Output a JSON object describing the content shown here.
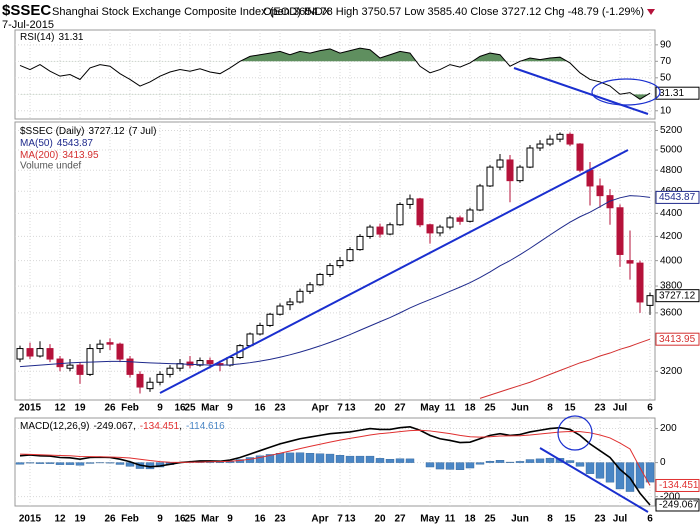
{
  "chart_data": [
    {
      "type": "line",
      "series": [
        {
          "name": "RSI(14)",
          "color": "#000000",
          "values": [
            65,
            60,
            66,
            58,
            52,
            54,
            48,
            62,
            66,
            64,
            55,
            48,
            40,
            45,
            52,
            57,
            60,
            58,
            61,
            57,
            55,
            62,
            70,
            76,
            78,
            80,
            82,
            78,
            82,
            80,
            83,
            85,
            80,
            83,
            86,
            84,
            74,
            78,
            82,
            80,
            64,
            56,
            60,
            66,
            63,
            68,
            76,
            80,
            78,
            64,
            70,
            74,
            72,
            74,
            75,
            68,
            56,
            48,
            45,
            40,
            30,
            32,
            24,
            31.31
          ]
        }
      ],
      "ylim": [
        0,
        108
      ],
      "yticks": [
        10,
        30,
        50,
        70,
        90
      ],
      "overbought": 70,
      "oversold": 30,
      "fill_color": "#5f8f5f",
      "grid": true
    },
    {
      "type": "candlestick",
      "title": "$SSEC",
      "subtitle": "Shanghai Stock Exchange Composite Index (EOD) INDX",
      "date": "7-Jul-2015",
      "quote": "Open 3654.78 High 3750.57 Low 3585.40 Close 3727.12 Chg -48.79 (-1.29%)",
      "name": "$SSEC (Daily)",
      "legend_date": "(7 Jul)",
      "note": "Volume undef",
      "categories": [
        null,
        "2015",
        null,
        null,
        "12",
        null,
        "19",
        null,
        null,
        "26",
        null,
        "Feb",
        null,
        null,
        "9",
        null,
        "16",
        "25",
        null,
        "Mar",
        null,
        "9",
        null,
        null,
        "16",
        null,
        "23",
        null,
        null,
        null,
        "Apr",
        null,
        "7",
        "13",
        null,
        null,
        "20",
        null,
        "27",
        null,
        null,
        "May",
        null,
        "11",
        null,
        "18",
        null,
        "25",
        null,
        null,
        "Jun",
        null,
        null,
        "8",
        null,
        "15",
        null,
        null,
        "23",
        null,
        "Jul",
        null,
        null,
        "6"
      ],
      "open": [
        3280,
        3350,
        3300,
        3350,
        3280,
        3220,
        3240,
        3180,
        3350,
        3390,
        3380,
        3280,
        3180,
        3090,
        3130,
        3180,
        3220,
        3260,
        3240,
        3270,
        3250,
        3240,
        3290,
        3370,
        3450,
        3510,
        3590,
        3660,
        3680,
        3760,
        3810,
        3890,
        3960,
        4000,
        4090,
        4200,
        4280,
        4220,
        4300,
        4480,
        4530,
        4300,
        4230,
        4280,
        4360,
        4330,
        4430,
        4650,
        4830,
        4900,
        4700,
        4830,
        5020,
        5060,
        5110,
        5160,
        5060,
        4800,
        4650,
        4560,
        4450,
        4000,
        3980,
        3654.78
      ],
      "high": [
        3370,
        3390,
        3400,
        3380,
        3300,
        3280,
        3260,
        3380,
        3410,
        3420,
        3390,
        3300,
        3200,
        3160,
        3200,
        3240,
        3280,
        3300,
        3290,
        3290,
        3270,
        3300,
        3380,
        3460,
        3530,
        3600,
        3670,
        3710,
        3780,
        3830,
        3900,
        3980,
        4030,
        4110,
        4220,
        4300,
        4310,
        4320,
        4500,
        4570,
        4540,
        4310,
        4300,
        4380,
        4380,
        4450,
        4670,
        4850,
        4960,
        4950,
        4850,
        5050,
        5100,
        5150,
        5180,
        5180,
        5070,
        4880,
        4720,
        4620,
        4480,
        4250,
        4000,
        3750.57
      ],
      "low": [
        3260,
        3280,
        3290,
        3260,
        3200,
        3200,
        3120,
        3170,
        3320,
        3340,
        3260,
        3160,
        3060,
        3070,
        3110,
        3160,
        3200,
        3220,
        3230,
        3220,
        3200,
        3230,
        3280,
        3360,
        3440,
        3500,
        3580,
        3620,
        3670,
        3740,
        3800,
        3870,
        3940,
        3990,
        4080,
        4180,
        4190,
        4210,
        4290,
        4440,
        4280,
        4140,
        4200,
        4260,
        4300,
        4320,
        4420,
        4640,
        4800,
        4500,
        4680,
        4820,
        4990,
        5040,
        5080,
        5040,
        4780,
        4470,
        4450,
        4300,
        3950,
        3850,
        3600,
        3585.4
      ],
      "close": [
        3350,
        3300,
        3350,
        3280,
        3230,
        3240,
        3180,
        3350,
        3380,
        3380,
        3280,
        3180,
        3100,
        3130,
        3180,
        3220,
        3250,
        3240,
        3270,
        3250,
        3240,
        3290,
        3370,
        3450,
        3510,
        3590,
        3650,
        3680,
        3760,
        3810,
        3890,
        3960,
        4000,
        4090,
        4200,
        4280,
        4220,
        4300,
        4480,
        4530,
        4300,
        4230,
        4280,
        4360,
        4330,
        4430,
        4650,
        4830,
        4900,
        4700,
        4830,
        5020,
        5060,
        5110,
        5160,
        5060,
        4800,
        4650,
        4560,
        4450,
        4050,
        3980,
        3680,
        3727.12
      ],
      "up_color": "#000000",
      "down_color": "#b5123a",
      "series": [
        {
          "name": "MA(50)",
          "color": "#1f2a8c",
          "values": [
            3230,
            3235,
            3240,
            3245,
            3250,
            3255,
            3258,
            3260,
            3262,
            3265,
            3265,
            3262,
            3258,
            3255,
            3252,
            3250,
            3248,
            3245,
            3243,
            3240,
            3240,
            3242,
            3248,
            3256,
            3266,
            3278,
            3292,
            3308,
            3326,
            3346,
            3368,
            3392,
            3418,
            3446,
            3476,
            3506,
            3536,
            3566,
            3600,
            3636,
            3668,
            3698,
            3728,
            3760,
            3792,
            3826,
            3866,
            3910,
            3958,
            4000,
            4048,
            4100,
            4156,
            4212,
            4268,
            4322,
            4370,
            4410,
            4460,
            4510,
            4540,
            4560,
            4555,
            4543.87
          ]
        },
        {
          "name": "MA(200)",
          "color": "#d32f2f",
          "values": [
            null,
            null,
            null,
            null,
            null,
            null,
            null,
            null,
            null,
            null,
            null,
            null,
            null,
            null,
            null,
            null,
            null,
            null,
            null,
            null,
            null,
            null,
            null,
            null,
            null,
            null,
            null,
            null,
            null,
            null,
            null,
            null,
            null,
            null,
            null,
            null,
            null,
            null,
            null,
            null,
            null,
            null,
            null,
            null,
            null,
            null,
            3030,
            3050,
            3070,
            3090,
            3110,
            3130,
            3155,
            3180,
            3205,
            3230,
            3255,
            3275,
            3300,
            3320,
            3345,
            3365,
            3390,
            3413.95
          ]
        }
      ],
      "log": true,
      "ylim": [
        3020,
        5290
      ],
      "yticks": [
        3200,
        3600,
        3800,
        4000,
        4200,
        4400,
        4600,
        4800,
        5000,
        5200
      ],
      "grid": true
    },
    {
      "type": "macd",
      "title": "MACD(12,26,9)",
      "separator": ",",
      "series": [
        {
          "color": "#000000",
          "values": [
            40,
            45,
            40,
            38,
            30,
            28,
            20,
            30,
            32,
            30,
            20,
            5,
            -15,
            -25,
            -20,
            -10,
            0,
            5,
            10,
            10,
            8,
            15,
            30,
            50,
            70,
            90,
            110,
            125,
            140,
            150,
            160,
            170,
            175,
            180,
            190,
            200,
            195,
            195,
            205,
            210,
            190,
            160,
            140,
            130,
            118,
            120,
            140,
            160,
            170,
            160,
            165,
            180,
            190,
            200,
            205,
            195,
            160,
            110,
            70,
            30,
            -40,
            -90,
            -180,
            -249.067
          ]
        },
        {
          "color": "#e03030",
          "values": [
            50,
            48,
            46,
            44,
            42,
            40,
            36,
            35,
            34,
            33,
            31,
            27,
            20,
            12,
            6,
            2,
            1,
            2,
            3,
            5,
            6,
            8,
            12,
            20,
            30,
            42,
            55,
            68,
            82,
            95,
            108,
            120,
            132,
            142,
            152,
            162,
            170,
            175,
            182,
            188,
            190,
            186,
            178,
            170,
            160,
            152,
            150,
            152,
            156,
            157,
            158,
            162,
            168,
            174,
            180,
            183,
            182,
            175,
            162,
            145,
            115,
            80,
            -30,
            -134.451
          ]
        },
        {
          "type": "bar",
          "color": "#4a86c5",
          "values": [
            -10,
            -3,
            -6,
            -6,
            -12,
            -12,
            -16,
            -5,
            -2,
            -3,
            -11,
            -22,
            -35,
            -37,
            -26,
            -12,
            -1,
            3,
            7,
            5,
            2,
            7,
            18,
            30,
            40,
            48,
            55,
            57,
            58,
            55,
            52,
            50,
            43,
            38,
            38,
            38,
            25,
            20,
            23,
            22,
            0,
            -26,
            -38,
            -40,
            -42,
            -32,
            -10,
            8,
            14,
            3,
            7,
            18,
            22,
            26,
            25,
            12,
            -22,
            -65,
            -92,
            -115,
            -155,
            -170,
            -150,
            -114.616
          ]
        }
      ],
      "ylim": [
        -255,
        262
      ],
      "yticks": [
        -200,
        0,
        200
      ],
      "grid": true
    }
  ]
}
